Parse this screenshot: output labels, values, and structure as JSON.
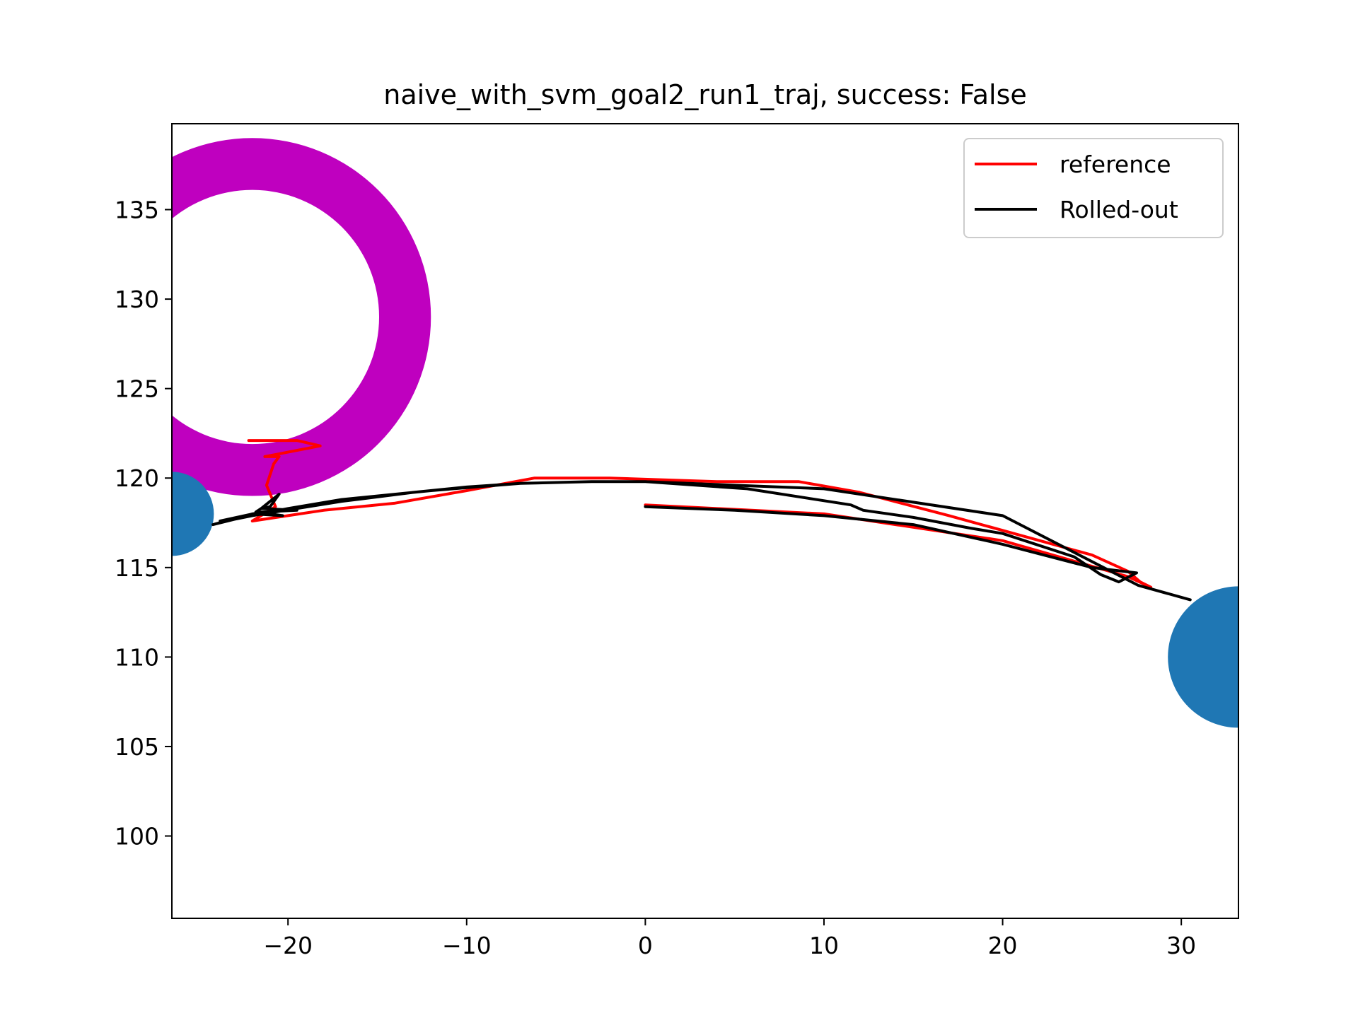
{
  "chart_data": {
    "type": "line",
    "title": "naive_with_svm_goal2_run1_traj, success: False",
    "xlabel": "",
    "ylabel": "",
    "xlim": [
      -26.5,
      33.2
    ],
    "ylim": [
      95.4,
      139.8
    ],
    "xticks": [
      -20,
      -10,
      0,
      10,
      20,
      30
    ],
    "xtick_labels": [
      "−20",
      "−10",
      "0",
      "10",
      "20",
      "30"
    ],
    "yticks": [
      100,
      105,
      110,
      115,
      120,
      125,
      130,
      135
    ],
    "ytick_labels": [
      "100",
      "105",
      "110",
      "115",
      "120",
      "125",
      "130",
      "135"
    ],
    "grid": false,
    "legend_position": "top-right",
    "colors": {
      "reference": "#ff0000",
      "rolled_out": "#000000",
      "obstacle_ring": "#bf00bf",
      "goal_circle": "#1f77b4"
    },
    "series": [
      {
        "name": "reference",
        "color": "#ff0000",
        "x": [
          0,
          10,
          20,
          27,
          28.3,
          27.7,
          27.0,
          25.0,
          17,
          12,
          8.6,
          4,
          -2,
          -6.2,
          -10,
          -14,
          -16,
          -18,
          -20,
          -22,
          -20.7,
          -21.2,
          -20.8,
          -20.5,
          -21.3,
          -18.2,
          -19.5,
          -22.2
        ],
        "y": [
          118.5,
          118.0,
          116.5,
          114.5,
          113.9,
          114.2,
          114.8,
          115.7,
          117.9,
          119.2,
          119.8,
          119.8,
          120.0,
          120.0,
          119.3,
          118.6,
          118.4,
          118.2,
          117.9,
          117.6,
          118.4,
          119.6,
          120.8,
          121.2,
          121.2,
          121.8,
          122.1,
          122.1
        ]
      },
      {
        "name": "Rolled-out",
        "color": "#000000",
        "x": [
          0,
          5,
          10,
          15,
          20,
          25,
          27.5,
          26.5,
          25.5,
          24,
          20,
          18.2,
          15,
          12.2,
          11.5,
          5.7,
          0,
          -3,
          -7,
          -10,
          -13,
          -17,
          -22,
          -23.8,
          -21.5,
          -19.5,
          -21.5,
          -21.0,
          -20.5,
          -21.5,
          -21.8,
          -20.3,
          -22.0,
          -24.2,
          -23.0,
          -20.0,
          -17.0,
          -12.0,
          -7.0,
          -3.0,
          0,
          10,
          20,
          27.6,
          30.5
        ],
        "y": [
          118.4,
          118.2,
          117.9,
          117.4,
          116.3,
          115.0,
          114.7,
          114.2,
          114.6,
          115.6,
          116.9,
          117.2,
          117.8,
          118.2,
          118.5,
          119.4,
          119.8,
          119.8,
          119.7,
          119.5,
          119.2,
          118.7,
          117.9,
          117.6,
          118.1,
          118.2,
          118.3,
          118.4,
          119.1,
          118.3,
          118.1,
          117.9,
          118.0,
          117.4,
          117.7,
          118.3,
          118.8,
          119.3,
          119.7,
          119.8,
          119.8,
          119.4,
          117.9,
          114.0,
          113.2
        ]
      }
    ],
    "obstacles": [
      {
        "kind": "ring",
        "center": [
          -22.0,
          129.0
        ],
        "inner_radius": 7.1,
        "outer_radius": 10.0,
        "color": "#bf00bf"
      }
    ],
    "goals": [
      {
        "kind": "circle",
        "center": [
          -26.5,
          118.0
        ],
        "radius": 2.35,
        "color": "#1f77b4"
      },
      {
        "kind": "circle",
        "center": [
          33.2,
          110.0
        ],
        "radius": 3.95,
        "color": "#1f77b4"
      }
    ]
  }
}
